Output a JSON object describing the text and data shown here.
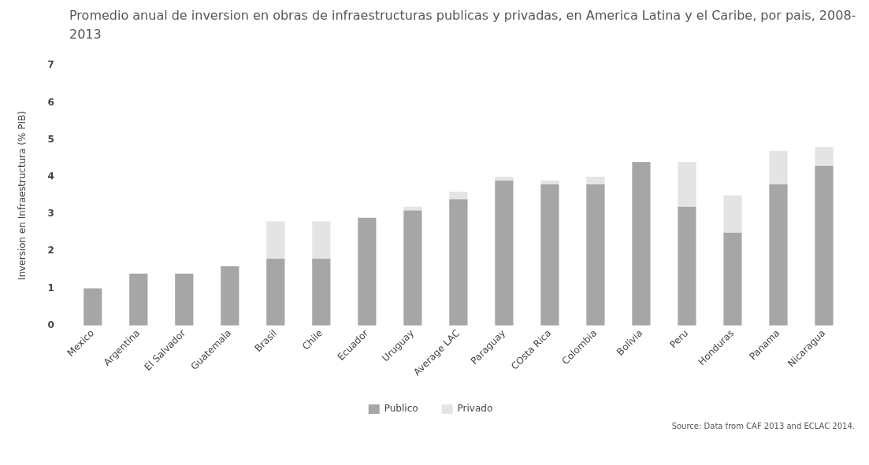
{
  "chart_data": {
    "type": "bar",
    "stacked": true,
    "title": "Promedio anual de inversion en obras de infraestructuras publicas y privadas, en America Latina y el Caribe, por pais, 2008-2013",
    "ylabel": "Inversion en Infraestructura (% PIB)",
    "categories": [
      "Mexico",
      "Argentina",
      "El Salvador",
      "Guatemala",
      "Brasil",
      "Chile",
      "Ecuador",
      "Uruguay",
      "Average LAC",
      "Paraguay",
      "COsta Rica",
      "Colombia",
      "Bolivia",
      "Peru",
      "Honduras",
      "Panama",
      "Nicaragua"
    ],
    "series": [
      {
        "name": "Publico",
        "color": "#a6a6a6",
        "values": [
          1.0,
          1.4,
          1.4,
          1.6,
          1.8,
          1.8,
          2.9,
          3.1,
          3.4,
          3.9,
          3.8,
          3.8,
          4.4,
          3.2,
          2.5,
          3.8,
          4.3
        ]
      },
      {
        "name": "Privado",
        "color": "#e4e4e4",
        "values": [
          0,
          0,
          0,
          0,
          1.0,
          1.0,
          0,
          0.1,
          0.2,
          0.1,
          0.1,
          0.2,
          0,
          1.2,
          1.0,
          0.9,
          0.5
        ]
      }
    ],
    "ylim": [
      0,
      7
    ],
    "yticks": [
      0,
      1,
      2,
      3,
      4,
      5,
      6,
      7
    ],
    "grid": false,
    "legend": "bottom",
    "annotations": [
      "Source: Data from CAF 2013 and ECLAC 2014."
    ]
  }
}
